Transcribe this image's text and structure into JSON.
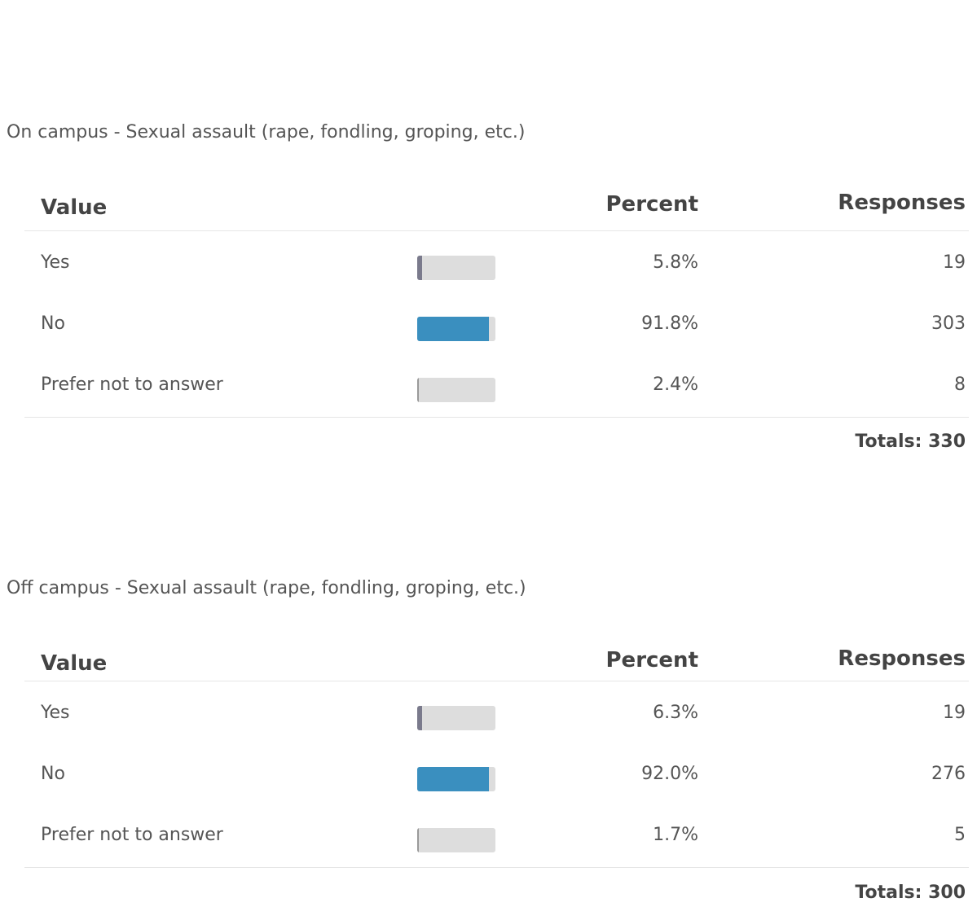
{
  "colors": {
    "bar_yes": "#7a7a8c",
    "bar_no": "#3a8fbf",
    "bar_prefer": "#9a9a9a"
  },
  "sections": [
    {
      "question": "On campus - Sexual assault (rape, fondling, groping, etc.)",
      "headers": {
        "value": "Value",
        "percent": "Percent",
        "responses": "Responses"
      },
      "rows": [
        {
          "value": "Yes",
          "percent": "5.8%",
          "responses": "19",
          "fraction": 0.058
        },
        {
          "value": "No",
          "percent": "91.8%",
          "responses": "303",
          "fraction": 0.918
        },
        {
          "value": "Prefer not to answer",
          "percent": "2.4%",
          "responses": "8",
          "fraction": 0.024
        }
      ],
      "totals": "Totals: 330"
    },
    {
      "question": "Off campus - Sexual assault (rape, fondling, groping, etc.)",
      "headers": {
        "value": "Value",
        "percent": "Percent",
        "responses": "Responses"
      },
      "rows": [
        {
          "value": "Yes",
          "percent": "6.3%",
          "responses": "19",
          "fraction": 0.063
        },
        {
          "value": "No",
          "percent": "92.0%",
          "responses": "276",
          "fraction": 0.92
        },
        {
          "value": "Prefer not to answer",
          "percent": "1.7%",
          "responses": "5",
          "fraction": 0.017
        }
      ],
      "totals": "Totals: 300"
    }
  ]
}
